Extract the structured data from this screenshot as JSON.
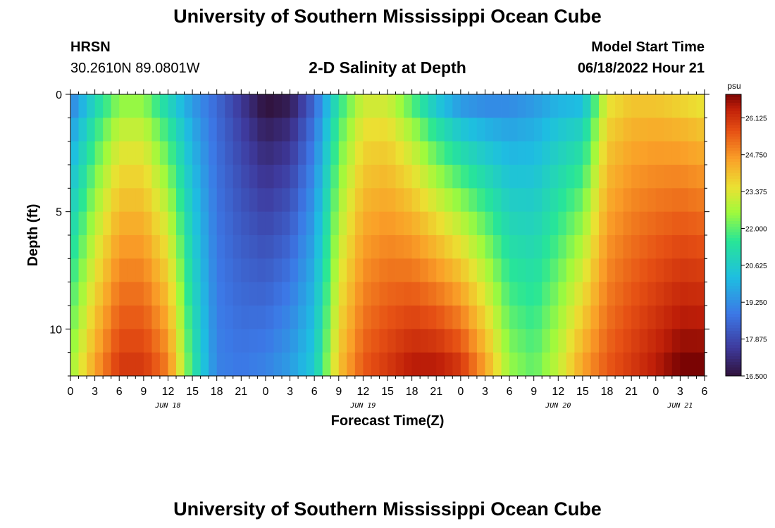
{
  "page": {
    "title_top": "University of Southern Mississippi Ocean Cube",
    "title_bottom": "University of Southern Mississippi Ocean Cube",
    "station": "HRSN",
    "coordinates": "30.2610N  89.0801W",
    "subtitle": "2-D Salinity at Depth",
    "start_label": "Model Start Time",
    "start_time": "06/18/2022 Hour 21"
  },
  "chart_data": {
    "type": "heatmap",
    "title": "2-D Salinity at Depth",
    "xlabel": "Forecast Time(Z)",
    "ylabel": "Depth (ft)",
    "x_hours_range": [
      0,
      78
    ],
    "x_tick_labels": [
      "0",
      "3",
      "6",
      "9",
      "12",
      "15",
      "18",
      "21",
      "0",
      "3",
      "6",
      "9",
      "12",
      "15",
      "18",
      "21",
      "0",
      "3",
      "6",
      "9",
      "12",
      "15",
      "18",
      "21",
      "0",
      "3",
      "6"
    ],
    "x_date_labels": [
      {
        "label": "JUN 18",
        "hour": 12
      },
      {
        "label": "JUN 19",
        "hour": 36
      },
      {
        "label": "JUN 20",
        "hour": 60
      },
      {
        "label": "JUN 21",
        "hour": 75
      }
    ],
    "y_range": [
      0,
      12
    ],
    "y_tick_labels": [
      "0",
      "5",
      "10"
    ],
    "y_tick_values": [
      0,
      5,
      10
    ],
    "depth_levels": 12,
    "hours": [
      0,
      3,
      6,
      9,
      12,
      15,
      18,
      21,
      24,
      27,
      30,
      33,
      36,
      39,
      42,
      45,
      48,
      51,
      54,
      57,
      60,
      63,
      66,
      69,
      72,
      75,
      78
    ],
    "surface_salinity": [
      19.0,
      21.0,
      22.5,
      22.5,
      21.0,
      19.5,
      18.5,
      17.5,
      16.5,
      16.8,
      18.5,
      21.5,
      23.2,
      23.2,
      22.0,
      20.5,
      19.5,
      19.2,
      19.2,
      19.5,
      20.0,
      20.2,
      23.5,
      24.0,
      24.0,
      23.8,
      23.5
    ],
    "bottom_salinity": [
      22.5,
      24.5,
      26.0,
      26.0,
      25.0,
      21.5,
      19.0,
      18.8,
      19.0,
      19.5,
      20.5,
      24.0,
      25.5,
      26.0,
      26.5,
      26.5,
      26.0,
      24.5,
      22.5,
      22.0,
      23.0,
      24.5,
      25.5,
      26.0,
      26.5,
      27.0,
      27.0
    ],
    "colorbar": {
      "unit": "psu",
      "min": 16.5,
      "max": 27.0,
      "ticks": [
        "26.125",
        "24.750",
        "23.375",
        "22.000",
        "20.625",
        "19.250",
        "17.875",
        "16.500"
      ]
    }
  }
}
